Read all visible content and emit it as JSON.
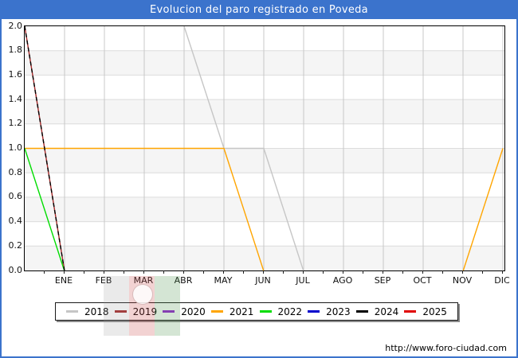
{
  "window": {
    "title": "Evolucion del paro registrado en Poveda"
  },
  "footer": {
    "url": "http://www.foro-ciudad.com"
  },
  "colors": {
    "titlebar_bg": "#3b73cc",
    "frame_border": "#3b73cc",
    "plot_border": "#000000",
    "band_fill": "#f5f5f5",
    "h_gridline": "#dcdcdc",
    "v_gridline": "#c8c8c8",
    "tick_color": "#222222",
    "text_color": "#111111"
  },
  "watermark": {
    "description": "faint vertical tricolor flag with white round emblem behind legend area",
    "band_colors": [
      "rgba(150,150,150,0.20)",
      "rgba(205,75,75,0.25)",
      "rgba(85,150,85,0.25)"
    ]
  },
  "chart_data": {
    "type": "line",
    "title": "Evolucion del paro registrado en Poveda",
    "x_labels": [
      "ENE",
      "FEB",
      "MAR",
      "ABR",
      "MAY",
      "JUN",
      "JUL",
      "AGO",
      "SEP",
      "OCT",
      "NOV",
      "DIC"
    ],
    "y_ticks": [
      "0.0",
      "0.2",
      "0.4",
      "0.6",
      "0.8",
      "1.0",
      "1.2",
      "1.4",
      "1.6",
      "1.8",
      "2.0"
    ],
    "ylim": [
      0.0,
      2.0
    ],
    "grid": true,
    "legend_position": "bottom",
    "x_axis_note": "plot left edge sits one month-width before ENE (previous December); month m is drawn at m*50px, m=1..12",
    "series": [
      {
        "name": "2018",
        "color": "#c6c6c6",
        "dash": "",
        "points": [
          [
            4,
            2
          ],
          [
            5,
            1
          ],
          [
            6,
            1
          ],
          [
            7,
            0
          ],
          [
            12,
            0
          ]
        ],
        "monthly_values": [
          null,
          null,
          null,
          2,
          1,
          1,
          0,
          0,
          0,
          0,
          0,
          0
        ],
        "pre_jan_value": null
      },
      {
        "name": "2019",
        "color": "#a52a2a",
        "dash": "",
        "points": [
          [
            0,
            2
          ],
          [
            1,
            0
          ],
          [
            12,
            0
          ]
        ],
        "monthly_values": [
          0,
          0,
          0,
          0,
          0,
          0,
          0,
          0,
          0,
          0,
          0,
          0
        ],
        "pre_jan_value": 2
      },
      {
        "name": "2020",
        "color": "#9422d2",
        "dash": "",
        "points": [],
        "monthly_values": [
          null,
          null,
          null,
          null,
          null,
          null,
          null,
          null,
          null,
          null,
          null,
          null
        ],
        "pre_jan_value": null
      },
      {
        "name": "2021",
        "color": "#ffa500",
        "dash": "",
        "points": [
          [
            0,
            1
          ],
          [
            5,
            1
          ],
          [
            6,
            0
          ],
          [
            11,
            0
          ],
          [
            12,
            1
          ]
        ],
        "monthly_values": [
          1,
          1,
          1,
          1,
          1,
          0,
          0,
          0,
          0,
          0,
          0,
          1
        ],
        "pre_jan_value": 1
      },
      {
        "name": "2022",
        "color": "#00dd00",
        "dash": "",
        "points": [
          [
            0,
            1
          ],
          [
            1,
            0
          ],
          [
            12,
            0
          ]
        ],
        "monthly_values": [
          0,
          0,
          0,
          0,
          0,
          0,
          0,
          0,
          0,
          0,
          0,
          0
        ],
        "pre_jan_value": 1
      },
      {
        "name": "2023",
        "color": "#0000cc",
        "dash": "",
        "points": [],
        "monthly_values": [
          null,
          null,
          null,
          null,
          null,
          null,
          null,
          null,
          null,
          null,
          null,
          null
        ],
        "pre_jan_value": null
      },
      {
        "name": "2024",
        "color": "#000000",
        "dash": "5,4",
        "points": [
          [
            0,
            2
          ],
          [
            1,
            0
          ],
          [
            12,
            0
          ]
        ],
        "monthly_values": [
          0,
          0,
          0,
          0,
          0,
          0,
          0,
          0,
          0,
          0,
          0,
          0
        ],
        "pre_jan_value": 2
      },
      {
        "name": "2025",
        "color": "#e00000",
        "dash": "",
        "points": [],
        "monthly_values": [
          null,
          null,
          null,
          null,
          null,
          null,
          null,
          null,
          null,
          null,
          null,
          null
        ],
        "pre_jan_value": null
      }
    ]
  }
}
